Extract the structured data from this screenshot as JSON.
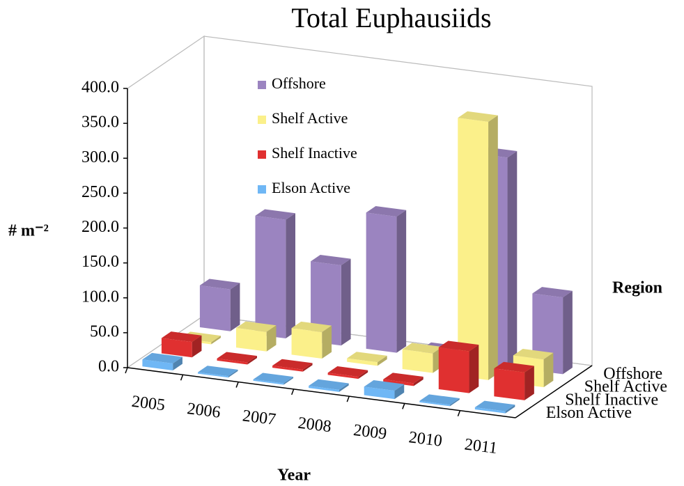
{
  "chart_data": {
    "type": "bar3d",
    "title": "Total Euphausiids",
    "x_label": "Year",
    "y_label": "# m⁻²",
    "z_label": "Region",
    "categories": [
      "2005",
      "2006",
      "2007",
      "2008",
      "2009",
      "2010",
      "2011"
    ],
    "series": [
      {
        "name": "Elson Active",
        "color": "#6fb7f5",
        "values": [
          10,
          2,
          2,
          3,
          12,
          2,
          3
        ]
      },
      {
        "name": "Shelf Inactive",
        "color": "#e03030",
        "values": [
          22,
          3,
          3,
          3,
          4,
          60,
          40
        ]
      },
      {
        "name": "Shelf Active",
        "color": "#fbf08a",
        "values": [
          3,
          28,
          38,
          5,
          28,
          370,
          40
        ]
      },
      {
        "name": "Offshore",
        "color": "#9b84c0",
        "values": [
          60,
          170,
          115,
          195,
          10,
          300,
          110
        ]
      }
    ],
    "ylim": [
      0,
      400
    ],
    "yticks": [
      {
        "value": 0,
        "label": "0.0"
      },
      {
        "value": 50,
        "label": "50.0"
      },
      {
        "value": 100,
        "label": "100.0"
      },
      {
        "value": 150,
        "label": "150.0"
      },
      {
        "value": 200,
        "label": "200.0"
      },
      {
        "value": 250,
        "label": "250.0"
      },
      {
        "value": 300,
        "label": "300.0"
      },
      {
        "value": 350,
        "label": "350.0"
      },
      {
        "value": 400,
        "label": "400.0"
      }
    ],
    "legend": "top-left"
  }
}
